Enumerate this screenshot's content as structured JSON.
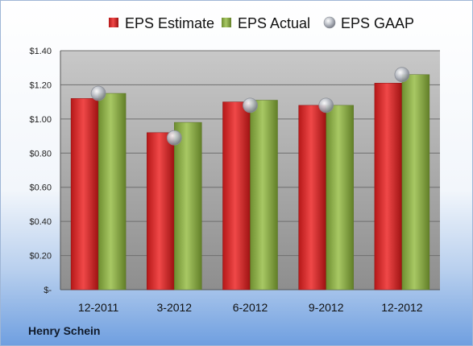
{
  "company_label": "Henry Schein",
  "colors": {
    "eps_estimate": "#d62a2a",
    "eps_actual": "#8fb24a",
    "eps_gaap": "#b8bcc4",
    "plot_background_top": "#c8c8c8",
    "plot_background_bottom": "#8e8e8e"
  },
  "chart_data": {
    "type": "bar",
    "categories": [
      "12-2011",
      "3-2012",
      "6-2012",
      "9-2012",
      "12-2012"
    ],
    "series": [
      {
        "name": "EPS Estimate",
        "type": "bar",
        "values": [
          1.12,
          0.92,
          1.1,
          1.08,
          1.21
        ]
      },
      {
        "name": "EPS Actual",
        "type": "bar",
        "values": [
          1.15,
          0.98,
          1.11,
          1.08,
          1.26
        ]
      },
      {
        "name": "EPS GAAP",
        "type": "scatter",
        "values": [
          1.15,
          0.89,
          1.08,
          1.08,
          1.26
        ]
      }
    ],
    "y_ticks": [
      "$-",
      "$0.20",
      "$0.40",
      "$0.60",
      "$0.80",
      "$1.00",
      "$1.20",
      "$1.40"
    ],
    "ylim": [
      0,
      1.4
    ],
    "y_step": 0.2,
    "grid": true,
    "legend_position": "top"
  }
}
